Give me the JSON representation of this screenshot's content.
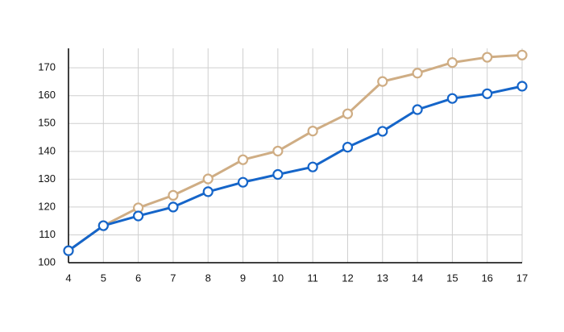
{
  "chart_data": {
    "type": "line",
    "x": [
      4,
      5,
      6,
      7,
      8,
      9,
      10,
      11,
      12,
      13,
      14,
      15,
      16,
      17
    ],
    "series": [
      {
        "color": "#cfad84",
        "values": [
          104.3,
          113.3,
          119.7,
          124.2,
          130.1,
          137,
          140.1,
          147.3,
          153.5,
          165.1,
          168.1,
          171.9,
          173.8,
          174.6
        ]
      },
      {
        "color": "#1565c9",
        "values": [
          104.3,
          113.3,
          116.8,
          120,
          125.5,
          128.9,
          131.7,
          134.4,
          141.5,
          147.2,
          155,
          159,
          160.7,
          163.4
        ]
      }
    ],
    "xlim": [
      4,
      17
    ],
    "xticks": [
      4,
      5,
      6,
      7,
      8,
      9,
      10,
      11,
      12,
      13,
      14,
      15,
      16,
      17
    ],
    "ylim": [
      100,
      177
    ],
    "yticks": [
      100,
      110,
      120,
      130,
      140,
      150,
      160,
      170
    ],
    "grid": true
  }
}
